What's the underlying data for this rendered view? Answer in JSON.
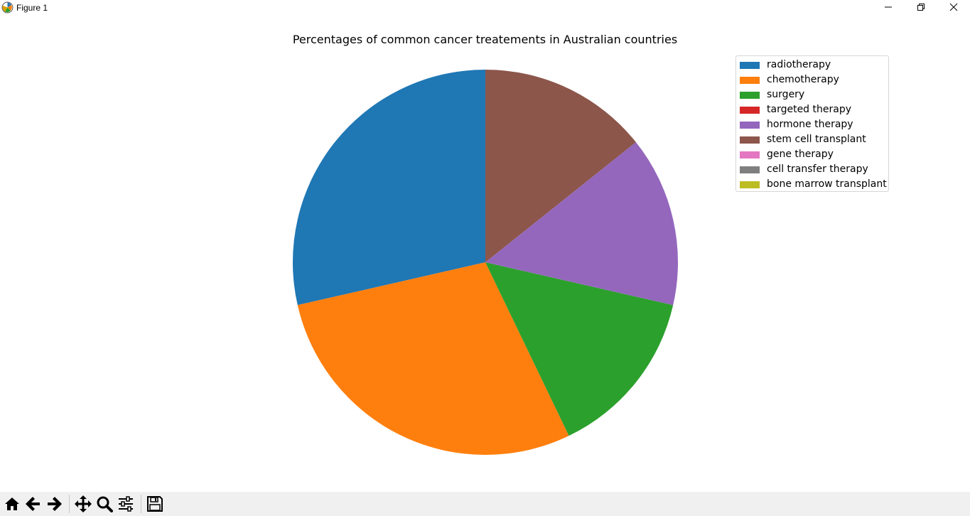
{
  "window": {
    "title": "Figure 1",
    "controls": [
      "minimize",
      "restore",
      "close"
    ]
  },
  "chart_data": {
    "type": "pie",
    "title": "Percentages of common cancer treatements in Australian countries",
    "labels": [
      "radiotherapy",
      "chemotherapy",
      "surgery",
      "targeted therapy",
      "hormone therapy",
      "stem cell transplant",
      "gene therapy",
      "cell transfer therapy",
      "bone marrow transplant"
    ],
    "values": [
      28.6,
      28.6,
      14.3,
      0,
      14.3,
      14.3,
      0,
      0,
      0
    ],
    "colors": [
      "#1f77b4",
      "#ff7f0e",
      "#2ca02c",
      "#d62728",
      "#9467bd",
      "#8c564b",
      "#e377c2",
      "#7f7f7f",
      "#bcbd22"
    ],
    "start_angle_deg": 90,
    "direction": "counterclockwise",
    "legend_position": "top-right"
  },
  "toolbar": {
    "buttons": [
      "home",
      "back",
      "forward",
      "pan",
      "zoom",
      "configure-subplots",
      "save"
    ]
  }
}
